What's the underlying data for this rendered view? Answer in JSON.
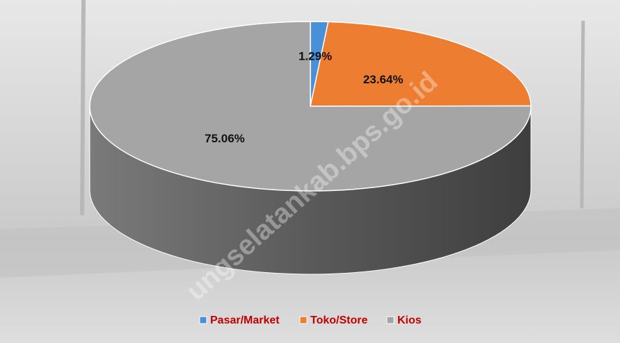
{
  "chart_data": {
    "type": "pie",
    "categories": [
      "Pasar/Market",
      "Toko/Store",
      "Kios"
    ],
    "values": [
      1.29,
      23.64,
      75.06
    ],
    "value_labels": [
      "1.29%",
      "23.64%",
      "75.06%"
    ],
    "colors": [
      "#4a90d9",
      "#ed7d31",
      "#a5a5a5"
    ],
    "legend": "bottom",
    "watermark": "ungselatankab.bps.go.id"
  }
}
